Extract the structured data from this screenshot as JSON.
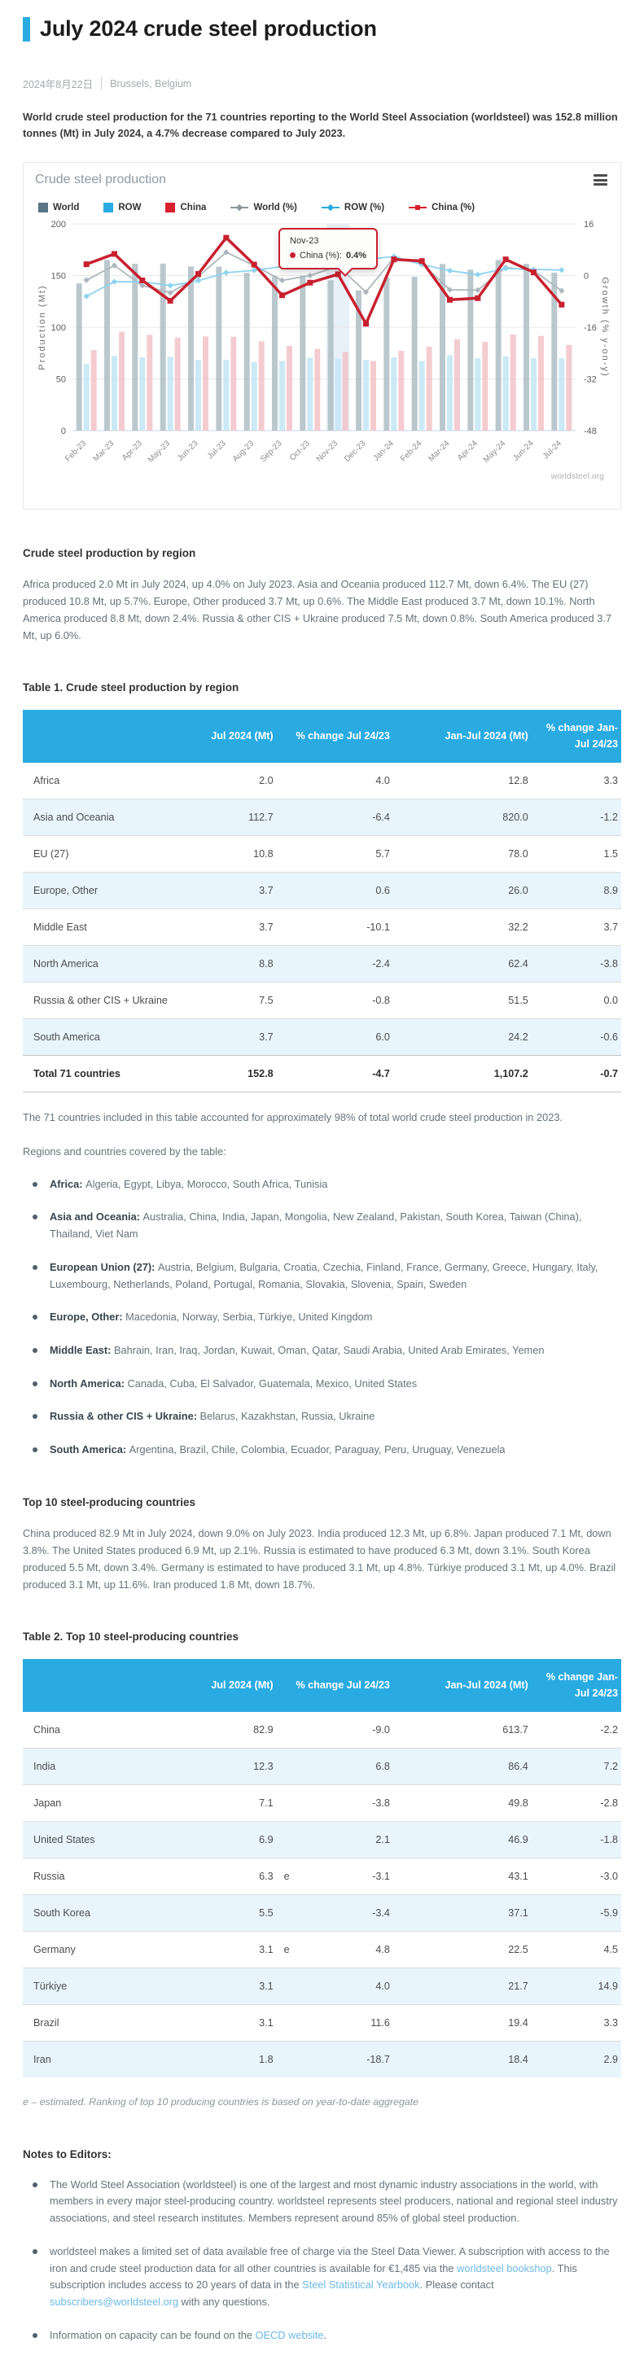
{
  "page": {
    "title": "July 2024 crude steel production",
    "date": "2024年8月22日",
    "location": "Brussels, Belgium",
    "intro": "World crude steel production for the 71 countries reporting to the World Steel Association (worldsteel) was 152.8 million tonnes (Mt) in July 2024, a 4.7% decrease compared to July 2023.",
    "accent_color": "#29abe2"
  },
  "chart_card": {
    "title": "Crude steel production",
    "menu_icon": "hamburger-menu-icon",
    "watermark": "worldsteel.org",
    "tooltip": {
      "month": "Nov-23",
      "series_label": "China (%):",
      "value": "0.4%",
      "highlight_index": 9
    }
  },
  "chart_data": {
    "type": "bar+line combo, dual axis",
    "title": "Crude steel production",
    "categories": [
      "Feb-23",
      "Mar-23",
      "Apr-23",
      "May-23",
      "Jun-23",
      "Jul-23",
      "Aug-23",
      "Sep-23",
      "Oct-23",
      "Nov-23",
      "Dec-23",
      "Jan-24",
      "Feb-24",
      "Mar-24",
      "Apr-24",
      "May-24",
      "Jun-24",
      "Jul-24"
    ],
    "left_axis": {
      "title": "Production (Mt)",
      "min": 0,
      "max": 200,
      "ticks": [
        200,
        150,
        100,
        50,
        0
      ]
    },
    "right_axis": {
      "title": "Growth (% y-on-y)",
      "min": -48,
      "max": 16,
      "ticks": [
        16,
        0,
        -16,
        -32,
        -48
      ]
    },
    "grid": "horizontal only",
    "legend_position": "top",
    "series": [
      {
        "name": "World",
        "type": "bar",
        "axis": "left",
        "color": "#aebec6",
        "values": [
          142.4,
          165.1,
          161.4,
          161.6,
          158.8,
          158.5,
          152.6,
          149.3,
          150.0,
          145.5,
          135.7,
          148.1,
          148.8,
          161.2,
          155.7,
          165.1,
          161.3,
          152.8
        ]
      },
      {
        "name": "ROW",
        "type": "bar",
        "axis": "left",
        "color": "#c3e5f5",
        "values": [
          64.5,
          72.5,
          71.0,
          71.5,
          68.5,
          68.5,
          66.5,
          67.5,
          70.5,
          69.5,
          68.5,
          71.0,
          67.5,
          73.0,
          70.0,
          72.0,
          70.0,
          70.0
        ]
      },
      {
        "name": "China",
        "type": "bar",
        "axis": "left",
        "color": "#f2c3c8",
        "values": [
          77.9,
          95.7,
          92.6,
          90.1,
          91.1,
          90.8,
          86.4,
          82.1,
          79.1,
          76.1,
          67.4,
          77.2,
          81.2,
          88.3,
          85.9,
          92.9,
          91.6,
          82.9
        ]
      },
      {
        "name": "World (%)",
        "type": "line",
        "marker": "diamond",
        "axis": "right",
        "color": "#adb7bd",
        "values": [
          -1.4,
          3.1,
          -3.1,
          -5.3,
          -0.3,
          7.2,
          3.1,
          -1.5,
          0.0,
          2.9,
          -5.1,
          5.5,
          3.7,
          -4.4,
          -4.5,
          2.5,
          1.5,
          -4.7
        ]
      },
      {
        "name": "ROW (%)",
        "type": "line",
        "marker": "diamond",
        "axis": "right",
        "color": "#8ed3f0",
        "values": [
          -6.4,
          -1.9,
          -1.9,
          -3.1,
          -1.6,
          0.9,
          1.6,
          2.8,
          2.9,
          4.0,
          5.0,
          5.9,
          3.4,
          1.5,
          0.3,
          2.2,
          1.9,
          1.7
        ]
      },
      {
        "name": "China (%)",
        "type": "line",
        "marker": "square",
        "axis": "right",
        "color": "#c8202f",
        "values": [
          3.5,
          6.7,
          -1.5,
          -7.8,
          0.5,
          11.7,
          3.4,
          -6.1,
          -2.2,
          0.4,
          -14.9,
          5.0,
          4.5,
          -7.5,
          -7.0,
          5.0,
          1.0,
          -9.0
        ]
      }
    ],
    "legend": [
      {
        "label": "World",
        "swatch": "square",
        "color": "#5b7484"
      },
      {
        "label": "ROW",
        "swatch": "square",
        "color": "#29abe2"
      },
      {
        "label": "China",
        "swatch": "square",
        "color": "#d81f2e"
      },
      {
        "label": "World (%)",
        "swatch": "line",
        "marker": "diamond",
        "color": "#8d979e"
      },
      {
        "label": "ROW (%)",
        "swatch": "line",
        "marker": "diamond",
        "color": "#29abe2"
      },
      {
        "label": "China (%)",
        "swatch": "line",
        "marker": "square",
        "color": "#d81f2e"
      }
    ]
  },
  "region_section": {
    "heading": "Crude steel production by region",
    "paragraph": "Africa produced 2.0 Mt in July 2024, up 4.0% on July 2023. Asia and Oceania produced 112.7 Mt, down 6.4%. The EU (27) produced 10.8 Mt, up 5.7%. Europe, Other produced 3.7 Mt, up 0.6%. The Middle East produced 3.7 Mt, down 10.1%. North America produced 8.8 Mt, down 2.4%. Russia & other CIS + Ukraine produced 7.5 Mt, down 0.8%. South America produced 3.7 Mt, up 6.0%."
  },
  "table1": {
    "caption": "Table 1. Crude steel production by region",
    "columns": [
      "",
      "Jul 2024 (Mt)",
      "% change Jul 24/23",
      "Jan-Jul 2024 (Mt)",
      "% change Jan-Jul 24/23"
    ],
    "rows": [
      {
        "label": "Africa",
        "values": [
          "2.0",
          "4.0",
          "12.8",
          "3.3"
        ]
      },
      {
        "label": "Asia and Oceania",
        "values": [
          "112.7",
          "-6.4",
          "820.0",
          "-1.2"
        ]
      },
      {
        "label": "EU (27)",
        "values": [
          "10.8",
          "5.7",
          "78.0",
          "1.5"
        ]
      },
      {
        "label": "Europe, Other",
        "values": [
          "3.7",
          "0.6",
          "26.0",
          "8.9"
        ]
      },
      {
        "label": "Middle East",
        "values": [
          "3.7",
          "-10.1",
          "32.2",
          "3.7"
        ]
      },
      {
        "label": "North America",
        "values": [
          "8.8",
          "-2.4",
          "62.4",
          "-3.8"
        ]
      },
      {
        "label": "Russia & other CIS + Ukraine",
        "values": [
          "7.5",
          "-0.8",
          "51.5",
          "0.0"
        ]
      },
      {
        "label": "South America",
        "values": [
          "3.7",
          "6.0",
          "24.2",
          "-0.6"
        ]
      }
    ],
    "total_row": {
      "label": "Total 71 countries",
      "values": [
        "152.8",
        "-4.7",
        "1,107.2",
        "-0.7"
      ]
    },
    "note": "The 71 countries included in this table accounted for approximately 98% of total world crude steel production in 2023."
  },
  "regions": {
    "intro": "Regions and countries covered by the table:",
    "items": [
      {
        "label": "Africa:",
        "countries": "Algeria, Egypt, Libya, Morocco, South Africa, Tunisia"
      },
      {
        "label": "Asia and Oceania:",
        "countries": "Australia, China, India, Japan, Mongolia, New Zealand, Pakistan, South Korea, Taiwan (China), Thailand, Viet Nam"
      },
      {
        "label": "European Union (27):",
        "countries": "Austria, Belgium, Bulgaria, Croatia, Czechia, Finland, France, Germany, Greece, Hungary, Italy, Luxembourg, Netherlands, Poland, Portugal, Romania, Slovakia, Slovenia, Spain, Sweden"
      },
      {
        "label": "Europe, Other:",
        "countries": "Macedonia, Norway, Serbia, Türkiye, United Kingdom"
      },
      {
        "label": "Middle East:",
        "countries": "Bahrain, Iran, Iraq, Jordan, Kuwait, Oman, Qatar, Saudi Arabia, United Arab Emirates, Yemen"
      },
      {
        "label": "North America:",
        "countries": "Canada, Cuba, El Salvador, Guatemala, Mexico, United States"
      },
      {
        "label": "Russia & other CIS + Ukraine:",
        "countries": "Belarus, Kazakhstan, Russia, Ukraine"
      },
      {
        "label": "South America:",
        "countries": "Argentina, Brazil, Chile, Colombia, Ecuador, Paraguay, Peru, Uruguay, Venezuela"
      }
    ]
  },
  "top10": {
    "heading": "Top 10 steel-producing countries",
    "paragraph": "China produced 82.9 Mt in July 2024, down 9.0% on July 2023. India produced 12.3 Mt, up 6.8%. Japan produced 7.1 Mt, down 3.8%. The United States produced 6.9 Mt, up 2.1%. Russia is estimated to have produced 6.3 Mt, down 3.1%. South Korea produced 5.5 Mt, down 3.4%. Germany is estimated to have produced 3.1 Mt, up 4.8%. Türkiye produced 3.1 Mt, up 4.0%. Brazil produced 3.1 Mt, up 11.6%. Iran produced 1.8 Mt, down 18.7%."
  },
  "table2": {
    "caption": "Table 2. Top 10 steel-producing countries",
    "columns": [
      "",
      "Jul 2024 (Mt)",
      "% change Jul 24/23",
      "Jan-Jul 2024 (Mt)",
      "% change Jan-Jul 24/23"
    ],
    "rows": [
      {
        "label": "China",
        "values": [
          "82.9",
          "-9.0",
          "613.7",
          "-2.2"
        ]
      },
      {
        "label": "India",
        "values": [
          "12.3",
          "6.8",
          "86.4",
          "7.2"
        ]
      },
      {
        "label": "Japan",
        "values": [
          "7.1",
          "-3.8",
          "49.8",
          "-2.8"
        ]
      },
      {
        "label": "United States",
        "values": [
          "6.9",
          "2.1",
          "46.9",
          "-1.8"
        ]
      },
      {
        "label": "Russia",
        "values": [
          "6.3",
          "-3.1",
          "43.1",
          "-3.0"
        ],
        "estimated": true
      },
      {
        "label": "South Korea",
        "values": [
          "5.5",
          "-3.4",
          "37.1",
          "-5.9"
        ]
      },
      {
        "label": "Germany",
        "values": [
          "3.1",
          "4.8",
          "22.5",
          "4.5"
        ],
        "estimated": true
      },
      {
        "label": "Türkiye",
        "values": [
          "3.1",
          "4.0",
          "21.7",
          "14.9"
        ]
      },
      {
        "label": "Brazil",
        "values": [
          "3.1",
          "11.6",
          "19.4",
          "3.3"
        ]
      },
      {
        "label": "Iran",
        "values": [
          "1.8",
          "-18.7",
          "18.4",
          "2.9"
        ]
      }
    ],
    "estimated_flag": "e",
    "footnote": "e – estimated. Ranking of top 10 producing countries is based on year-to-date aggregate"
  },
  "notes": {
    "heading": "Notes to Editors:",
    "items": [
      [
        {
          "t": "The World Steel Association (worldsteel) is one of the largest and most dynamic industry associations in the world, with members in every major steel-producing country. worldsteel represents steel producers, national and regional steel industry associations, and steel research institutes. Members represent around 85% of global steel production."
        }
      ],
      [
        {
          "t": "worldsteel makes a limited set of data available free of charge via the Steel Data Viewer. A subscription with access to the iron and crude steel production data for all other countries is available for €1,485  via the "
        },
        {
          "t": "worldsteel bookshop",
          "link": true
        },
        {
          "t": ". This subscription includes access to 20 years of data in the "
        },
        {
          "t": "Steel Statistical Yearbook",
          "link": true
        },
        {
          "t": ". Please contact "
        },
        {
          "t": "subscribers@worldsteel.org",
          "link": true
        },
        {
          "t": " with any questions."
        }
      ],
      [
        {
          "t": "Information on capacity can be found on the "
        },
        {
          "t": "OECD website",
          "link": true
        },
        {
          "t": "."
        }
      ]
    ]
  }
}
